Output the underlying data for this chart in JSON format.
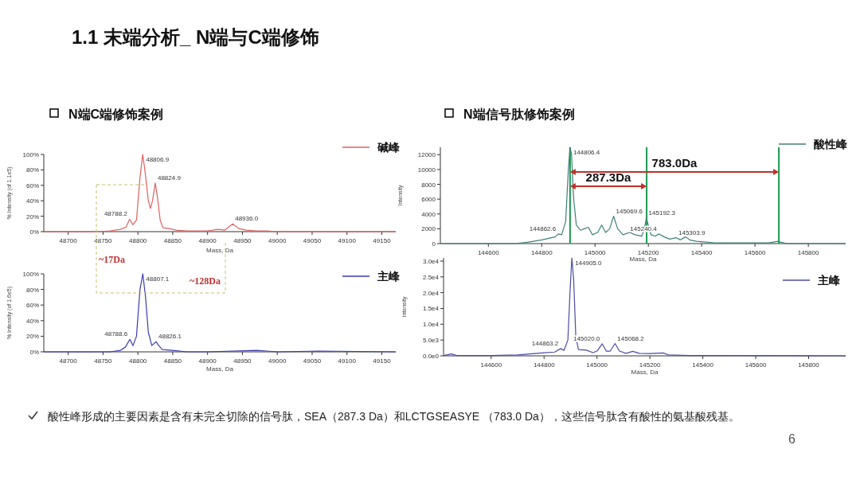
{
  "chart_data": [
    {
      "type": "line",
      "title": "1.1 末端分析_ N端与C端修饰",
      "subtitle": "N端C端修饰案例",
      "xlabel": "Mass, Da",
      "ylabel": "% Intensity (of 1.1e5)",
      "x": [
        48665,
        48745,
        48760,
        48775,
        48783,
        48788.2,
        48793,
        48798,
        48803,
        48806.9,
        48810,
        48815,
        48818,
        48821,
        48824.9,
        48828,
        48832,
        48836,
        48845,
        48855,
        48870,
        48900,
        48915,
        48925,
        48936,
        48945,
        48955,
        48970,
        48985,
        49000,
        49170
      ],
      "series": [
        {
          "name": "碱峰",
          "color": "#e06060",
          "values": [
            0,
            0,
            1,
            3,
            6,
            16,
            9,
            15,
            70,
            100,
            80,
            40,
            30,
            40,
            63,
            45,
            15,
            5,
            4,
            2,
            1,
            1,
            3,
            2,
            10,
            4,
            2,
            1,
            1,
            0,
            0
          ]
        }
      ],
      "xlim": [
        48665,
        49170
      ],
      "xticks": [
        48700,
        48750,
        48800,
        48850,
        48900,
        48950,
        49000,
        49050,
        49100,
        49150
      ],
      "ylim": [
        0,
        100
      ],
      "yticks": [
        {
          "value": 0,
          "label": "0%"
        },
        {
          "value": 20,
          "label": "20%"
        },
        {
          "value": 40,
          "label": "40%"
        },
        {
          "value": 60,
          "label": "60%"
        },
        {
          "value": 80,
          "label": "80%"
        },
        {
          "value": 100,
          "label": "100%"
        }
      ],
      "legend": "top right",
      "annotations": [
        {
          "text": "48806.9",
          "x": 48806.9,
          "y": 100
        },
        {
          "text": "48824.9",
          "x": 48824.9,
          "y": 63
        },
        {
          "text": "48788.2",
          "x": 48788.2,
          "y": 16
        },
        {
          "text": "48936.0",
          "x": 48936,
          "y": 10
        },
        "~17Da",
        "~128Da"
      ]
    },
    {
      "type": "line",
      "xlabel": "Mass, Da",
      "ylabel": "% Intensity (of 1.6e5)",
      "x": [
        48665,
        48760,
        48775,
        48782,
        48788.6,
        48793,
        48798,
        48803,
        48807.1,
        48811,
        48815,
        48820,
        48826.1,
        48830,
        48835,
        48850,
        48870,
        48900,
        48970,
        48985,
        49000,
        49060,
        49170
      ],
      "series": [
        {
          "name": "主峰",
          "color": "#3c3cb0",
          "values": [
            0,
            0,
            2,
            6,
            16,
            8,
            20,
            80,
            100,
            70,
            25,
            8,
            13,
            8,
            3,
            2,
            0,
            0,
            2,
            1,
            0,
            1,
            0
          ]
        }
      ],
      "xlim": [
        48665,
        49170
      ],
      "xticks": [
        48700,
        48750,
        48800,
        48850,
        48900,
        48950,
        49000,
        49050,
        49100,
        49150
      ],
      "ylim": [
        0,
        100
      ],
      "yticks": [
        {
          "value": 0,
          "label": "0%"
        },
        {
          "value": 20,
          "label": "20%"
        },
        {
          "value": 40,
          "label": "40%"
        },
        {
          "value": 60,
          "label": "60%"
        },
        {
          "value": 80,
          "label": "80%"
        },
        {
          "value": 100,
          "label": "100%"
        }
      ],
      "legend": "top right",
      "annotations": [
        {
          "text": "48807.1",
          "x": 48807.1,
          "y": 100
        },
        {
          "text": "48788.6",
          "x": 48788.6,
          "y": 16
        },
        {
          "text": "48826.1",
          "x": 48826.1,
          "y": 13
        }
      ]
    },
    {
      "type": "line",
      "subtitle": "N端信号肽修饰案例",
      "xlabel": "Mass, Da",
      "ylabel": "Intensity",
      "x": [
        144420,
        144700,
        144750,
        144800,
        144850,
        144862.6,
        144875,
        144890,
        144900,
        144906.4,
        144912,
        144920,
        144930,
        144945,
        144960,
        144975,
        144990,
        145010,
        145025,
        145040,
        145055,
        145069.6,
        145085,
        145105,
        145130,
        145150,
        145175,
        145185,
        145192.3,
        145200,
        145210,
        145225,
        145240.4,
        145260,
        145280,
        145303.9,
        145320,
        145340,
        145355,
        145380,
        145450,
        145550,
        145650,
        145688,
        145695,
        145720,
        145800,
        145940
      ],
      "series": [
        {
          "name": "酸性峰",
          "color": "#3f7f78",
          "values": [
            0,
            0,
            200,
            500,
            900,
            1300,
            1200,
            3000,
            10000,
            13000,
            12000,
            6000,
            2500,
            1800,
            2000,
            2200,
            1200,
            1500,
            2500,
            1500,
            2000,
            3700,
            2000,
            1200,
            1500,
            1200,
            1000,
            2000,
            3400,
            2500,
            1200,
            1000,
            1300,
            900,
            600,
            800,
            500,
            900,
            500,
            300,
            100,
            100,
            100,
            300,
            200,
            0,
            0,
            0
          ]
        }
      ],
      "xlim": [
        144420,
        145940
      ],
      "xticks": [
        144600,
        144800,
        145000,
        145200,
        145400,
        145600,
        145800
      ],
      "ylim": [
        0,
        13000
      ],
      "yticks": [
        0,
        2000,
        4000,
        6000,
        8000,
        10000,
        12000
      ],
      "legend": "top right",
      "ref_lines": [
        {
          "axis": "x",
          "value": 144906.4,
          "color": "#1a9a50"
        },
        {
          "axis": "x",
          "value": 145193.7,
          "color": "#1a9a50"
        },
        {
          "axis": "x",
          "value": 145689.4,
          "color": "#1a9a50"
        }
      ],
      "annotations": [
        {
          "text": "144806.4",
          "x": 144906.4,
          "y": 13000
        },
        {
          "text": "144862.6",
          "x": 144862.6,
          "y": 1300
        },
        {
          "text": "145069.6",
          "x": 145069.6,
          "y": 3700
        },
        {
          "text": "145192.3",
          "x": 145192.3,
          "y": 3400
        },
        {
          "text": "145240.4",
          "x": 145240.4,
          "y": 1300
        },
        {
          "text": "145303.9",
          "x": 145303.9,
          "y": 800
        },
        "287.3Da",
        "783.0Da"
      ]
    },
    {
      "type": "line",
      "xlabel": "Mass, Da",
      "ylabel": "Intensity",
      "x": [
        144420,
        144450,
        144470,
        144600,
        144700,
        144800,
        144840,
        144863.2,
        144875,
        144890,
        144898,
        144905,
        144912,
        144920,
        144930,
        144960,
        144985,
        145000,
        145020,
        145035,
        145050,
        145068.2,
        145085,
        145110,
        145135,
        145160,
        145200,
        145250,
        145270,
        145350,
        145500,
        145940
      ],
      "series": [
        {
          "name": "主峰",
          "color": "#4b4ba8",
          "values": [
            100,
            600,
            100,
            100,
            300,
            1000,
            1200,
            2300,
            1700,
            5000,
            20000,
            31000,
            24000,
            6000,
            2000,
            1800,
            1000,
            1500,
            3800,
            1500,
            1500,
            3900,
            1500,
            800,
            1400,
            800,
            700,
            900,
            300,
            100,
            100,
            0
          ]
        }
      ],
      "xlim": [
        144420,
        145940
      ],
      "xticks": [
        144600,
        144800,
        145000,
        145200,
        145400,
        145600,
        145800
      ],
      "ylim": [
        0,
        31000
      ],
      "yticks": [
        {
          "value": 0,
          "label": "0.0e0"
        },
        {
          "value": 5000,
          "label": "5.0e3"
        },
        {
          "value": 10000,
          "label": "1.0e4"
        },
        {
          "value": 15000,
          "label": "1.5e4"
        },
        {
          "value": 20000,
          "label": "2.0e4"
        },
        {
          "value": 25000,
          "label": "2.5e4"
        },
        {
          "value": 30000,
          "label": "3.0e4"
        }
      ],
      "legend": "top right",
      "annotations": [
        {
          "text": "144905.0",
          "x": 144905,
          "y": 31000
        },
        {
          "text": "144863.2",
          "x": 144863.2,
          "y": 2300
        },
        {
          "text": "145020.0",
          "x": 145020,
          "y": 3800
        },
        {
          "text": "145068.2",
          "x": 145068.2,
          "y": 3900
        },
        "酸性峰形成的主要因素是含有未完全切除的信号肽，SEA（287.3 Da）和LCTGSEASYE （783.0 Da），这些信号肽含有酸性的氨基酸残基。",
        "6"
      ]
    }
  ]
}
